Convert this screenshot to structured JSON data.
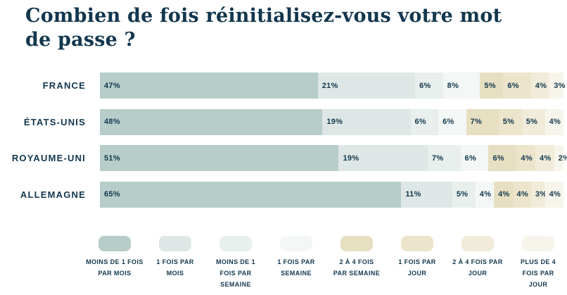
{
  "title": "Combien de fois réinitialisez-vous votre mot\nde passe ?",
  "colors": {
    "background": "#ffffff",
    "text": "#12374e"
  },
  "chart_data": {
    "type": "bar",
    "variant": "horizontal-stacked-100",
    "title": "Combien de fois réinitialisez-vous votre mot de passe ?",
    "categories": [
      "FRANCE",
      "ÉTATS-UNIS",
      "ROYAUME-UNI",
      "ALLEMAGNE"
    ],
    "series": [
      {
        "name": "MOINS DE 1 FOIS PAR MOIS",
        "color": "#b6cdca",
        "values": [
          47,
          48,
          51,
          65
        ]
      },
      {
        "name": "1 FOIS PAR MOIS",
        "color": "#dee7e5",
        "values": [
          21,
          19,
          19,
          11
        ]
      },
      {
        "name": "MOINS DE 1 FOIS PAR SEMAINE",
        "color": "#e9efec",
        "values": [
          6,
          6,
          7,
          5
        ]
      },
      {
        "name": "1 FOIS PAR SEMAINE",
        "color": "#f3f7f5",
        "values": [
          8,
          6,
          6,
          4
        ]
      },
      {
        "name": "2 À 4 FOIS PAR SEMAINE",
        "color": "#e7dfc1",
        "values": [
          5,
          7,
          6,
          4
        ]
      },
      {
        "name": "1 FOIS PAR JOUR",
        "color": "#ece5cb",
        "values": [
          6,
          5,
          4,
          4
        ]
      },
      {
        "name": "2 À 4 FOIS PAR JOUR",
        "color": "#f1ecda",
        "values": [
          4,
          5,
          4,
          3
        ]
      },
      {
        "name": "PLUS DE 4 FOIS PAR JOUR",
        "color": "#f7f5eb",
        "values": [
          3,
          4,
          2,
          4
        ]
      }
    ],
    "value_suffix": "%",
    "legend_position": "bottom",
    "legend_labels_wrapped": [
      "MOINS DE 1 FOIS\nPAR MOIS",
      "1 FOIS PAR\nMOIS",
      "MOINS DE 1\nFOIS PAR\nSEMAINE",
      "1 FOIS PAR\nSEMAINE",
      "2 À 4 FOIS\nPAR SEMAINE",
      "1 FOIS PAR\nJOUR",
      "2 À 4 FOIS PAR\nJOUR",
      "PLUS DE 4\nFOIS PAR\nJOUR"
    ]
  }
}
